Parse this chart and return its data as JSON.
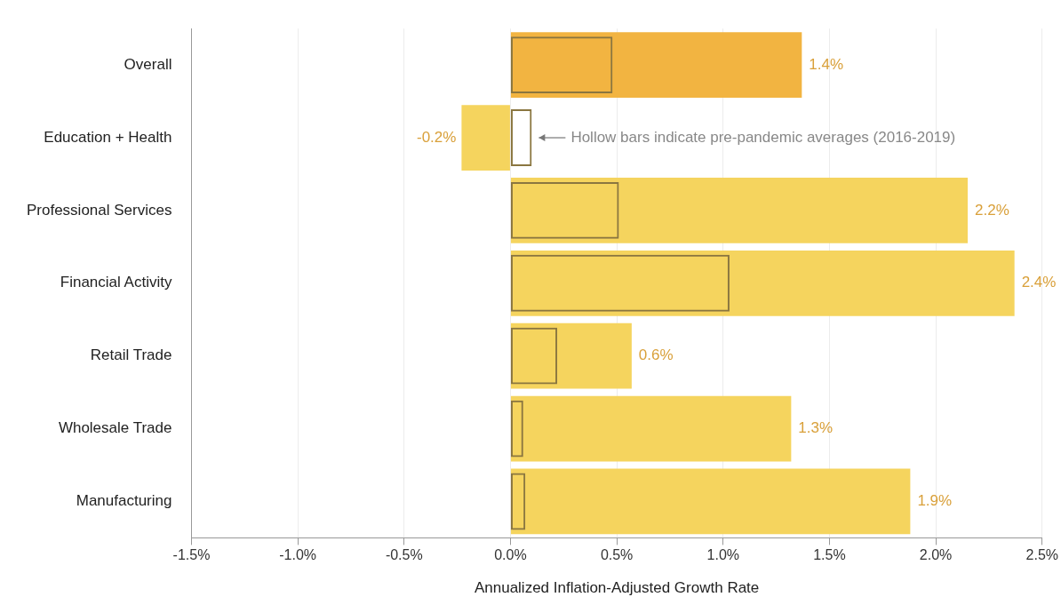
{
  "chart_data": {
    "type": "bar",
    "orientation": "horizontal",
    "xlabel": "Annualized Inflation-Adjusted Growth Rate",
    "categories": [
      "Overall",
      "Education + Health",
      "Professional Services",
      "Financial Activity",
      "Retail Trade",
      "Wholesale Trade",
      "Manufacturing"
    ],
    "series": [
      {
        "colors": [
          "#f2b441",
          "#f5d45e",
          "#f5d45e",
          "#f5d45e",
          "#f5d45e",
          "#f5d45e",
          "#f5d45e"
        ],
        "values": [
          1.37,
          -0.23,
          2.15,
          2.37,
          0.57,
          1.32,
          1.88
        ],
        "value_labels": [
          "1.4%",
          "-0.2%",
          "2.2%",
          "2.4%",
          "0.6%",
          "1.3%",
          "1.9%"
        ]
      },
      {
        "color": "#8a7640",
        "values": [
          0.48,
          0.1,
          0.51,
          1.03,
          0.22,
          0.06,
          0.07
        ]
      }
    ],
    "xlim": [
      -1.5,
      2.5
    ],
    "xticks": [
      {
        "value": -1.5,
        "label": "-1.5%"
      },
      {
        "value": -1.0,
        "label": "-1.0%"
      },
      {
        "value": -0.5,
        "label": "-0.5%"
      },
      {
        "value": 0,
        "label": "0.0%"
      },
      {
        "value": 0.5,
        "label": "0.5%"
      },
      {
        "value": 1.0,
        "label": "1.0%"
      },
      {
        "value": 1.5,
        "label": "1.5%"
      },
      {
        "value": 2.0,
        "label": "2.0%"
      },
      {
        "value": 2.5,
        "label": "2.5%"
      }
    ],
    "annotations": [
      {
        "text": "Hollow bars indicate pre-pandemic averages (2016-2019)",
        "x": 0.1,
        "y": "Education + Health"
      }
    ],
    "grid": "x",
    "legend": false
  }
}
